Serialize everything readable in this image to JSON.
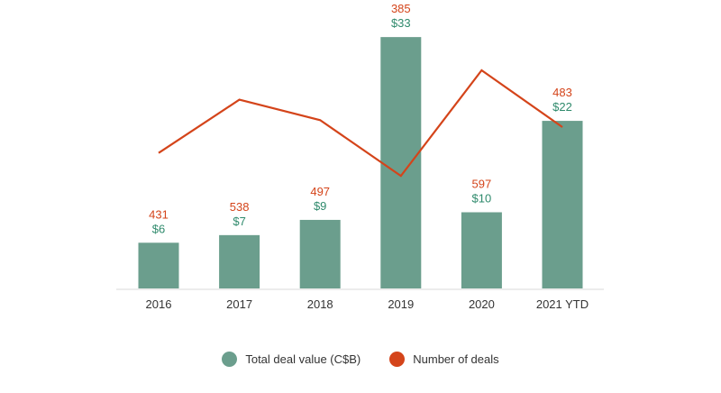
{
  "chart_data": {
    "type": "bar+line",
    "title": "",
    "xlabel": "",
    "ylabel": "",
    "categories": [
      "2016",
      "2017",
      "2018",
      "2019",
      "2020",
      "2021 YTD"
    ],
    "series": [
      {
        "name": "Total deal value (C$B)",
        "type": "bar",
        "axis": "primary",
        "values": [
          6,
          7,
          9,
          33,
          10,
          22
        ],
        "labels": [
          "$6",
          "$7",
          "$9",
          "$33",
          "$10",
          "$22"
        ],
        "color": "#6b9e8d",
        "label_color": "#2f8a6c"
      },
      {
        "name": "Number of deals",
        "type": "line",
        "axis": "secondary",
        "values": [
          431,
          538,
          497,
          385,
          597,
          483
        ],
        "labels": [
          "431",
          "538",
          "497",
          "385",
          "597",
          "483"
        ],
        "color": "#d4441a",
        "label_color": "#d4441a"
      }
    ],
    "ylim": [
      0,
      35.5
    ],
    "y2lim": [
      159,
      702
    ],
    "grid": false,
    "legend": "bottom-center"
  }
}
